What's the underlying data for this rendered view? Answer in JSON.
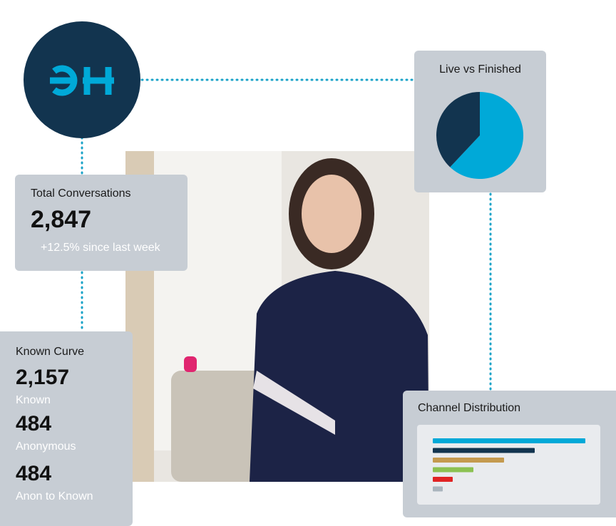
{
  "total_conversations": {
    "title": "Total Conversations",
    "value": "2,847",
    "change": "+12.5% since last week"
  },
  "known_curve": {
    "title": "Known Curve",
    "stats": [
      {
        "value": "2,157",
        "label": "Known"
      },
      {
        "value": "484",
        "label": "Anonymous"
      },
      {
        "value": "484",
        "label": "Anon to Known"
      }
    ]
  },
  "live_vs_finished": {
    "title": "Live vs Finished",
    "type": "pie",
    "values": [
      62,
      38
    ],
    "colors": [
      "#00a9d8",
      "#12344f"
    ]
  },
  "channel_distribution": {
    "title": "Channel Distribution",
    "type": "bar",
    "values": [
      214,
      143,
      100,
      57,
      28,
      14
    ],
    "colors": [
      "#00a9d8",
      "#12344f",
      "#c49a4f",
      "#8cc152",
      "#e02424",
      "#aab4bd"
    ]
  }
}
